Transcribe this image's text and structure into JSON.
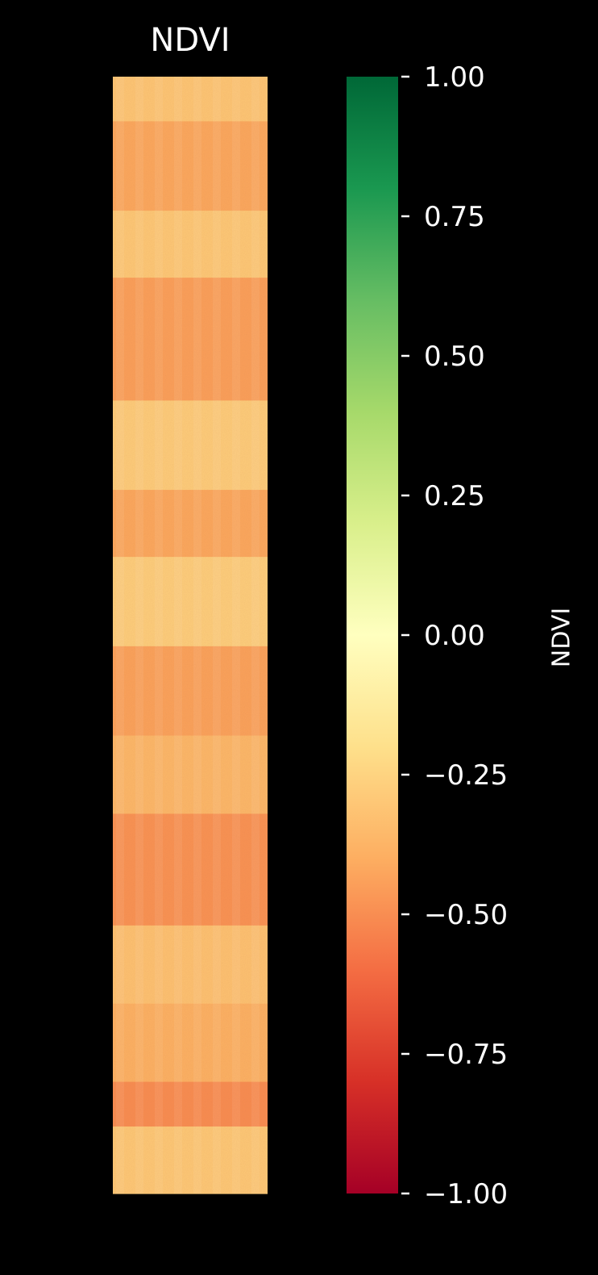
{
  "chart_data": {
    "type": "heatmap",
    "title": "NDVI",
    "colorbar": {
      "label": "NDVI",
      "range": [
        -1.0,
        1.0
      ],
      "ticks": [
        1.0,
        0.75,
        0.5,
        0.25,
        0.0,
        -0.25,
        -0.5,
        -0.75,
        -1.0
      ],
      "tick_labels": [
        "1.00",
        "0.75",
        "0.50",
        "0.25",
        "0.00",
        "−0.25",
        "−0.50",
        "−0.75",
        "−1.00"
      ],
      "colormap": "RdYlGn",
      "colormap_stops": [
        "#a50026",
        "#d73027",
        "#f46d43",
        "#fdae61",
        "#fee08b",
        "#ffffbf",
        "#d9ef8b",
        "#a6d96a",
        "#66bd63",
        "#1a9850",
        "#006837"
      ]
    },
    "image": {
      "description_values": "NDVI mostly between -0.6 and -0.2",
      "band_values": [
        {
          "from": 0.0,
          "to": 0.04,
          "value": -0.28
        },
        {
          "from": 0.04,
          "to": 0.12,
          "value": -0.42
        },
        {
          "from": 0.12,
          "to": 0.18,
          "value": -0.27
        },
        {
          "from": 0.18,
          "to": 0.29,
          "value": -0.45
        },
        {
          "from": 0.29,
          "to": 0.37,
          "value": -0.25
        },
        {
          "from": 0.37,
          "to": 0.43,
          "value": -0.42
        },
        {
          "from": 0.43,
          "to": 0.51,
          "value": -0.24
        },
        {
          "from": 0.51,
          "to": 0.59,
          "value": -0.44
        },
        {
          "from": 0.59,
          "to": 0.66,
          "value": -0.35
        },
        {
          "from": 0.66,
          "to": 0.76,
          "value": -0.5
        },
        {
          "from": 0.76,
          "to": 0.83,
          "value": -0.3
        },
        {
          "from": 0.83,
          "to": 0.9,
          "value": -0.38
        },
        {
          "from": 0.9,
          "to": 0.94,
          "value": -0.52
        },
        {
          "from": 0.94,
          "to": 1.0,
          "value": -0.27
        }
      ]
    }
  }
}
